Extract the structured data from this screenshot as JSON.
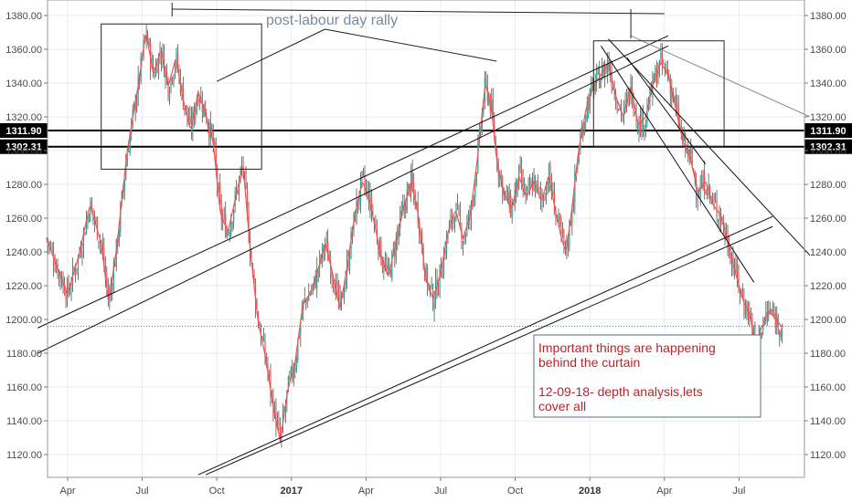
{
  "chart_data": {
    "type": "candlestick",
    "y_axis": {
      "ticks": [
        "1120.00",
        "1140.00",
        "1160.00",
        "1180.00",
        "1200.00",
        "1220.00",
        "1240.00",
        "1260.00",
        "1280.00",
        "1300.00",
        "1320.00",
        "1340.00",
        "1360.00",
        "1380.00"
      ],
      "range": [
        1108,
        1386
      ]
    },
    "x_axis": {
      "ticks": [
        {
          "label": "Apr",
          "bold": false,
          "t": 0
        },
        {
          "label": "Jul",
          "bold": false,
          "t": 1
        },
        {
          "label": "Oct",
          "bold": false,
          "t": 2
        },
        {
          "label": "2017",
          "bold": true,
          "t": 3
        },
        {
          "label": "Apr",
          "bold": false,
          "t": 4
        },
        {
          "label": "Jul",
          "bold": false,
          "t": 5
        },
        {
          "label": "Oct",
          "bold": false,
          "t": 6
        },
        {
          "label": "2018",
          "bold": true,
          "t": 7
        },
        {
          "label": "Apr",
          "bold": false,
          "t": 8
        },
        {
          "label": "Jul",
          "bold": false,
          "t": 9
        }
      ],
      "unit": "quarters since Apr 2016"
    },
    "price_levels": [
      {
        "label": "1311.90",
        "value": 1311.9
      },
      {
        "label": "1302.31",
        "value": 1302.31
      }
    ],
    "dotted_level": 1196,
    "close_path": [
      [
        -0.3,
        1250
      ],
      [
        -0.15,
        1232
      ],
      [
        0.0,
        1215
      ],
      [
        0.15,
        1238
      ],
      [
        0.3,
        1268
      ],
      [
        0.45,
        1245
      ],
      [
        0.55,
        1210
      ],
      [
        0.65,
        1240
      ],
      [
        0.8,
        1300
      ],
      [
        0.95,
        1340
      ],
      [
        1.05,
        1370
      ],
      [
        1.15,
        1345
      ],
      [
        1.25,
        1360
      ],
      [
        1.35,
        1338
      ],
      [
        1.45,
        1355
      ],
      [
        1.55,
        1330
      ],
      [
        1.65,
        1312
      ],
      [
        1.75,
        1335
      ],
      [
        1.85,
        1322
      ],
      [
        1.95,
        1305
      ],
      [
        2.05,
        1262
      ],
      [
        2.15,
        1252
      ],
      [
        2.25,
        1272
      ],
      [
        2.35,
        1292
      ],
      [
        2.45,
        1240
      ],
      [
        2.55,
        1200
      ],
      [
        2.65,
        1178
      ],
      [
        2.75,
        1150
      ],
      [
        2.85,
        1128
      ],
      [
        2.95,
        1158
      ],
      [
        3.05,
        1175
      ],
      [
        3.15,
        1208
      ],
      [
        3.3,
        1220
      ],
      [
        3.45,
        1245
      ],
      [
        3.55,
        1228
      ],
      [
        3.65,
        1206
      ],
      [
        3.75,
        1232
      ],
      [
        3.85,
        1262
      ],
      [
        3.95,
        1282
      ],
      [
        4.05,
        1270
      ],
      [
        4.2,
        1238
      ],
      [
        4.3,
        1225
      ],
      [
        4.45,
        1256
      ],
      [
        4.6,
        1282
      ],
      [
        4.7,
        1262
      ],
      [
        4.8,
        1225
      ],
      [
        4.9,
        1212
      ],
      [
        5.0,
        1228
      ],
      [
        5.1,
        1252
      ],
      [
        5.2,
        1265
      ],
      [
        5.3,
        1248
      ],
      [
        5.4,
        1262
      ],
      [
        5.5,
        1298
      ],
      [
        5.6,
        1340
      ],
      [
        5.68,
        1325
      ],
      [
        5.75,
        1295
      ],
      [
        5.85,
        1275
      ],
      [
        5.95,
        1265
      ],
      [
        6.05,
        1285
      ],
      [
        6.15,
        1272
      ],
      [
        6.25,
        1282
      ],
      [
        6.35,
        1270
      ],
      [
        6.45,
        1285
      ],
      [
        6.55,
        1262
      ],
      [
        6.62,
        1248
      ],
      [
        6.68,
        1240
      ],
      [
        6.75,
        1262
      ],
      [
        6.85,
        1300
      ],
      [
        6.95,
        1325
      ],
      [
        7.05,
        1338
      ],
      [
        7.15,
        1345
      ],
      [
        7.25,
        1352
      ],
      [
        7.35,
        1332
      ],
      [
        7.45,
        1320
      ],
      [
        7.55,
        1338
      ],
      [
        7.65,
        1315
      ],
      [
        7.75,
        1320
      ],
      [
        7.85,
        1340
      ],
      [
        7.95,
        1352
      ],
      [
        8.05,
        1345
      ],
      [
        8.15,
        1325
      ],
      [
        8.25,
        1305
      ],
      [
        8.35,
        1295
      ],
      [
        8.45,
        1275
      ],
      [
        8.55,
        1282
      ],
      [
        8.65,
        1268
      ],
      [
        8.75,
        1262
      ],
      [
        8.85,
        1246
      ],
      [
        8.95,
        1228
      ],
      [
        9.05,
        1212
      ],
      [
        9.15,
        1202
      ],
      [
        9.22,
        1184
      ],
      [
        9.3,
        1195
      ],
      [
        9.4,
        1205
      ],
      [
        9.5,
        1200
      ],
      [
        9.58,
        1195
      ]
    ],
    "channel_lines": [
      {
        "from": [
          -0.4,
          1195
        ],
        "to": [
          8.05,
          1368
        ]
      },
      {
        "from": [
          -0.4,
          1180
        ],
        "to": [
          8.05,
          1362
        ]
      },
      {
        "from": [
          1.75,
          1108
        ],
        "to": [
          9.45,
          1261
        ]
      },
      {
        "from": [
          1.85,
          1108
        ],
        "to": [
          9.45,
          1255
        ]
      },
      {
        "from": [
          7.15,
          1362
        ],
        "to": [
          9.2,
          1222
        ]
      },
      {
        "from": [
          7.25,
          1366
        ],
        "to": [
          9.95,
          1238
        ]
      },
      {
        "from": [
          7.55,
          1368
        ],
        "to": [
          9.95,
          1320
        ]
      },
      {
        "from": [
          7.5,
          1355
        ],
        "to": [
          8.55,
          1292
        ]
      }
    ],
    "annotation": {
      "title": "post-labour day rally",
      "notes": [
        "Important things are happening",
        "behind the curtain",
        "",
        "12-09-18- depth analysis,lets",
        "cover all"
      ]
    }
  }
}
